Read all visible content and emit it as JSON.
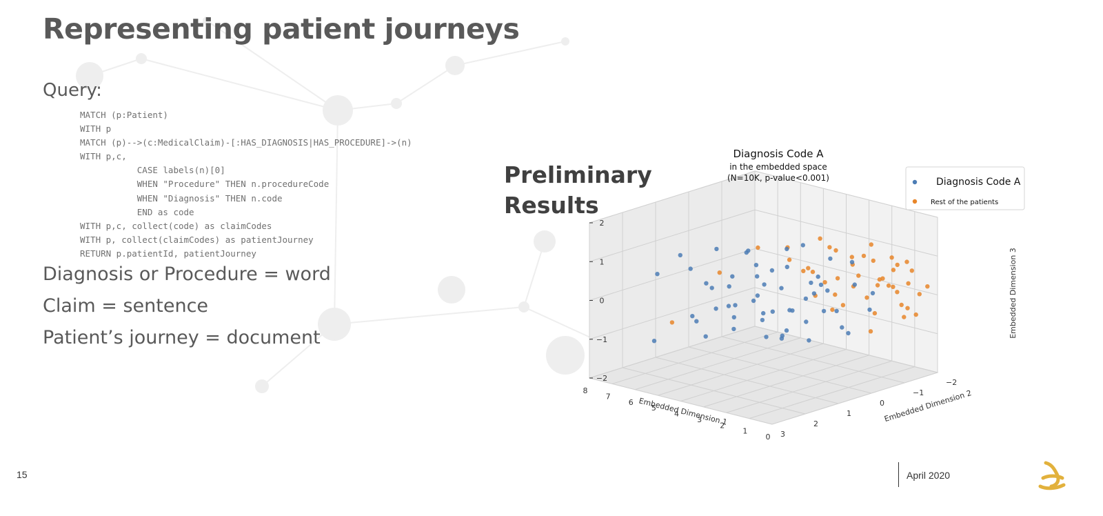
{
  "slide": {
    "title": "Representing patient journeys",
    "query_label": "Query:",
    "code_lines": [
      "MATCH (p:Patient)",
      "WITH p",
      "MATCH (p)-->(c:MedicalClaim)-[:HAS_DIAGNOSIS|HAS_PROCEDURE]->(n)",
      "WITH p,c,",
      "           CASE labels(n)[0]",
      "           WHEN \"Procedure\" THEN n.procedureCode",
      "           WHEN \"Diagnosis\" THEN n.code",
      "           END as code",
      "WITH p,c, collect(code) as claimCodes",
      "WITH p, collect(claimCodes) as patientJourney",
      "RETURN p.patientId, patientJourney"
    ],
    "bullets": [
      "Diagnosis or Procedure = word",
      "Claim = sentence",
      "Patient’s journey = document"
    ],
    "results_heading_line1": "Preliminary",
    "results_heading_line2": "Results",
    "page_number": "15",
    "date": "April 2020"
  },
  "colors": {
    "title_text": "#595959",
    "body_text": "#595959",
    "series_blue": "#4c7db5",
    "series_orange": "#e8862a",
    "logo": "#e2b13c"
  },
  "icons": {
    "logo": "company-logo-icon"
  },
  "chart_data": {
    "type": "scatter",
    "title": "Diagnosis Code A",
    "subtitle_lines": [
      "in the embedded space",
      "(N=10K, p-value<0.001)"
    ],
    "projection": "3d",
    "grid": true,
    "legend_position": "top-right",
    "axes": {
      "x": {
        "label": "Embedded Dimension 1",
        "ticks": [
          "8",
          "7",
          "6",
          "5",
          "4",
          "3",
          "2",
          "1",
          "0"
        ],
        "range": [
          0,
          8
        ]
      },
      "y": {
        "label": "Embedded Dimension 2",
        "ticks": [
          "3",
          "2",
          "1",
          "0",
          "−1",
          "−2"
        ],
        "range": [
          -2,
          3
        ]
      },
      "z": {
        "label": "Embedded Dimension 3",
        "ticks": [
          "2",
          "1",
          "0",
          "−1",
          "−2"
        ],
        "range": [
          -2,
          2
        ]
      }
    },
    "series": [
      {
        "name": "Diagnosis Code A",
        "color": "#4c7db5",
        "points": [
          [
            7.5,
            0.6,
            0.6
          ],
          [
            7.2,
            1.5,
            0.4
          ],
          [
            6.8,
            0.3,
            -0.1
          ],
          [
            6.5,
            0.8,
            -0.9
          ],
          [
            6.9,
            1.8,
            -1.2
          ],
          [
            6.2,
            0.4,
            0.9
          ],
          [
            6.1,
            1.2,
            -0.6
          ],
          [
            5.8,
            0.2,
            0.2
          ],
          [
            5.6,
            1.6,
            0.8
          ],
          [
            5.5,
            0.9,
            -0.4
          ],
          [
            5.3,
            0.5,
            -1.0
          ],
          [
            5.1,
            1.3,
            0.3
          ],
          [
            4.9,
            0.1,
            0.6
          ],
          [
            4.8,
            1.0,
            -0.2
          ],
          [
            4.6,
            0.6,
            1.1
          ],
          [
            4.5,
            1.9,
            -0.7
          ],
          [
            4.3,
            0.3,
            -0.5
          ],
          [
            4.2,
            1.4,
            0.5
          ],
          [
            4.0,
            0.8,
            0.0
          ],
          [
            3.9,
            0.0,
            -1.1
          ],
          [
            3.8,
            1.1,
            1.4
          ],
          [
            3.6,
            0.5,
            -0.3
          ],
          [
            3.5,
            1.7,
            0.2
          ],
          [
            3.4,
            0.2,
            0.8
          ],
          [
            3.3,
            0.9,
            -0.8
          ],
          [
            3.1,
            1.3,
            0.4
          ],
          [
            3.0,
            0.4,
            -0.2
          ],
          [
            2.9,
            1.0,
            1.0
          ],
          [
            2.8,
            -0.2,
            0.1
          ],
          [
            2.7,
            0.7,
            -0.6
          ],
          [
            2.6,
            1.5,
            -0.1
          ],
          [
            2.5,
            0.1,
            0.5
          ],
          [
            2.4,
            0.9,
            1.6
          ],
          [
            2.3,
            0.3,
            -0.9
          ],
          [
            2.2,
            1.2,
            0.7
          ],
          [
            2.1,
            -0.4,
            -0.3
          ],
          [
            2.0,
            0.6,
            0.3
          ],
          [
            1.9,
            1.4,
            -0.5
          ],
          [
            1.8,
            0.0,
            1.2
          ],
          [
            1.7,
            0.8,
            -0.2
          ],
          [
            1.6,
            -0.6,
            0.4
          ],
          [
            1.5,
            0.4,
            0.0
          ],
          [
            1.4,
            1.1,
            1.9
          ],
          [
            1.3,
            -0.2,
            -0.7
          ],
          [
            1.2,
            0.5,
            0.6
          ],
          [
            1.1,
            -0.8,
            0.2
          ],
          [
            1.0,
            0.2,
            -0.4
          ],
          [
            0.9,
            0.9,
            0.9
          ],
          [
            0.8,
            -0.5,
            -0.1
          ],
          [
            0.7,
            0.1,
            1.3
          ],
          [
            3.7,
            0.9,
            0.7
          ],
          [
            4.4,
            0.2,
            0.2
          ],
          [
            5.0,
            0.7,
            -0.6
          ],
          [
            2.3,
            0.8,
            0.0
          ],
          [
            1.9,
            0.3,
            0.8
          ]
        ]
      },
      {
        "name": "Rest of the patients",
        "color": "#e8862a",
        "points": [
          [
            6.7,
            1.4,
            -0.8
          ],
          [
            5.2,
            1.0,
            0.6
          ],
          [
            4.1,
            0.6,
            1.3
          ],
          [
            3.3,
            0.2,
            1.0
          ],
          [
            3.0,
            -0.3,
            0.6
          ],
          [
            2.8,
            0.6,
            1.5
          ],
          [
            2.6,
            -0.1,
            0.1
          ],
          [
            2.4,
            0.4,
            0.9
          ],
          [
            2.2,
            -0.5,
            0.5
          ],
          [
            2.1,
            0.1,
            1.7
          ],
          [
            2.0,
            -0.2,
            -0.2
          ],
          [
            1.9,
            0.6,
            1.1
          ],
          [
            1.8,
            -0.7,
            0.3
          ],
          [
            1.7,
            -0.1,
            1.4
          ],
          [
            1.6,
            0.3,
            0.7
          ],
          [
            1.5,
            -0.9,
            0.0
          ],
          [
            1.4,
            -0.4,
            1.0
          ],
          [
            1.3,
            0.2,
            0.4
          ],
          [
            1.2,
            -0.6,
            1.2
          ],
          [
            1.1,
            -1.1,
            0.5
          ],
          [
            1.0,
            -0.3,
            0.8
          ],
          [
            0.9,
            -1.4,
            0.1
          ],
          [
            0.8,
            -0.8,
            0.6
          ],
          [
            0.7,
            -1.6,
            0.3
          ],
          [
            0.6,
            -1.2,
            0.9
          ],
          [
            0.5,
            -1.8,
            0.0
          ],
          [
            0.5,
            -1.0,
            0.4
          ],
          [
            0.4,
            -1.5,
            0.7
          ],
          [
            0.3,
            -1.9,
            0.2
          ],
          [
            0.3,
            -1.3,
            -0.2
          ],
          [
            1.3,
            -1.0,
            -0.4
          ],
          [
            1.0,
            -1.6,
            -0.3
          ],
          [
            0.8,
            -1.9,
            -0.6
          ],
          [
            0.6,
            -1.4,
            -0.5
          ],
          [
            2.4,
            -0.8,
            -0.3
          ],
          [
            1.8,
            -1.3,
            0.8
          ],
          [
            1.5,
            -1.7,
            0.5
          ],
          [
            1.2,
            -1.9,
            0.7
          ],
          [
            2.7,
            -0.6,
            1.2
          ],
          [
            2.3,
            -1.0,
            0.9
          ],
          [
            0.9,
            -0.6,
            -0.7
          ],
          [
            1.6,
            -1.1,
            1.3
          ],
          [
            0.4,
            -0.8,
            0.5
          ],
          [
            1.9,
            -1.5,
            0.1
          ],
          [
            0.7,
            -1.1,
            1.1
          ]
        ]
      }
    ]
  }
}
